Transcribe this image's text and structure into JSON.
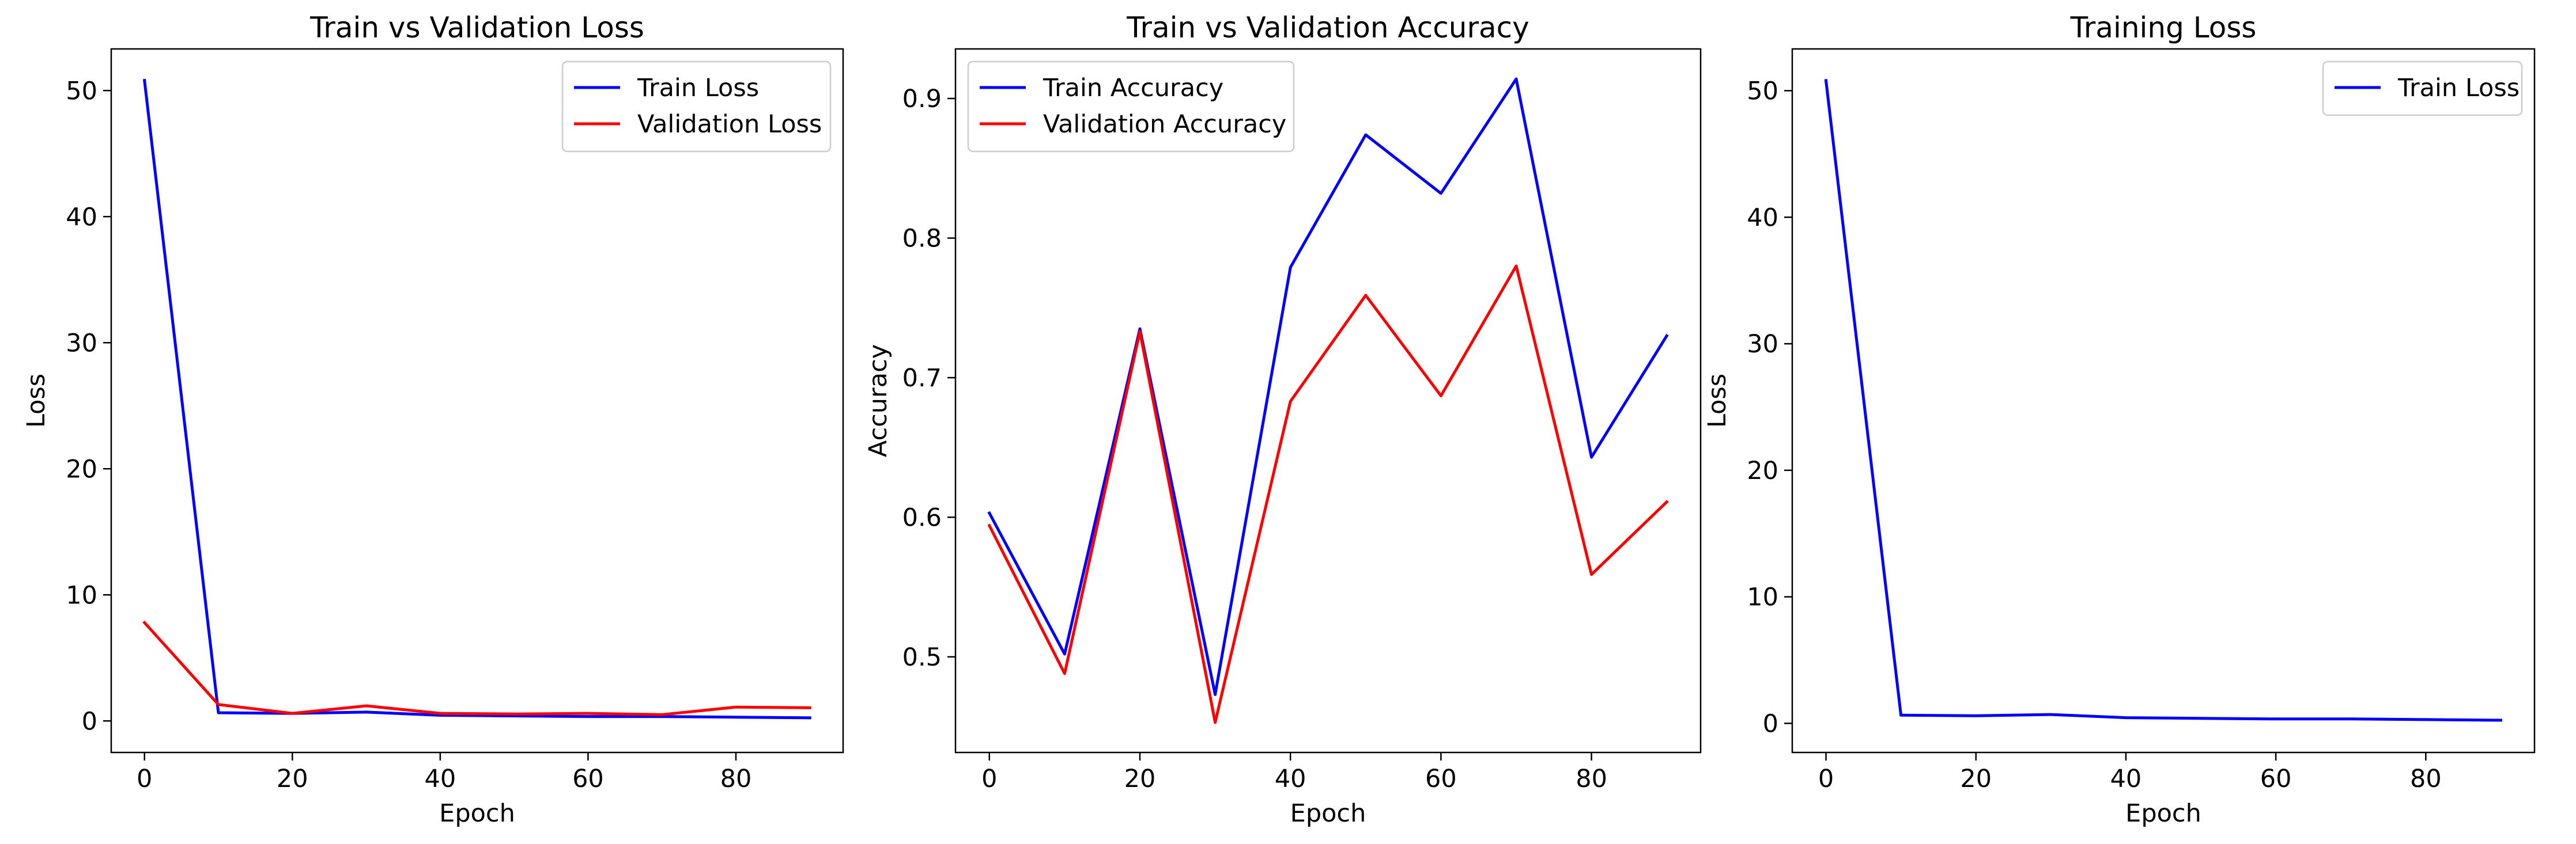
{
  "chart_data": [
    {
      "type": "line",
      "title": "Train vs Validation Loss",
      "xlabel": "Epoch",
      "ylabel": "Loss",
      "xlim": [
        -4.5,
        94.5
      ],
      "ylim": [
        -2.5,
        53.3
      ],
      "xticks": [
        0,
        20,
        40,
        60,
        80
      ],
      "yticks": [
        0,
        10,
        20,
        30,
        40,
        50
      ],
      "grid": false,
      "legend": "top-right",
      "x": [
        0,
        10,
        20,
        30,
        40,
        50,
        60,
        70,
        80,
        90
      ],
      "series": [
        {
          "name": "Train Loss",
          "color": "#0000ff",
          "values": [
            50.8,
            0.65,
            0.6,
            0.7,
            0.45,
            0.4,
            0.35,
            0.35,
            0.3,
            0.25
          ]
        },
        {
          "name": "Validation Loss",
          "color": "#ff0000",
          "values": [
            7.8,
            1.3,
            0.6,
            1.2,
            0.6,
            0.55,
            0.6,
            0.5,
            1.1,
            1.05
          ]
        }
      ]
    },
    {
      "type": "line",
      "title": "Train vs Validation Accuracy",
      "xlabel": "Epoch",
      "ylabel": "Accuracy",
      "xlim": [
        -4.5,
        94.5
      ],
      "ylim": [
        0.4315,
        0.9355
      ],
      "xticks": [
        0,
        20,
        40,
        60,
        80
      ],
      "yticks": [
        0.5,
        0.6,
        0.7,
        0.8,
        0.9
      ],
      "grid": false,
      "legend": "top-left",
      "x": [
        0,
        10,
        20,
        30,
        40,
        50,
        60,
        70,
        80,
        90
      ],
      "series": [
        {
          "name": "Train Accuracy",
          "color": "#0000ff",
          "values": [
            0.603,
            0.502,
            0.735,
            0.473,
            0.779,
            0.874,
            0.832,
            0.914,
            0.643,
            0.73
          ]
        },
        {
          "name": "Validation Accuracy",
          "color": "#ff0000",
          "values": [
            0.594,
            0.488,
            0.733,
            0.453,
            0.683,
            0.759,
            0.687,
            0.78,
            0.559,
            0.611
          ]
        }
      ]
    },
    {
      "type": "line",
      "title": "Training Loss",
      "xlabel": "Epoch",
      "ylabel": "Loss",
      "xlim": [
        -4.5,
        94.5
      ],
      "ylim": [
        -2.3,
        53.3
      ],
      "xticks": [
        0,
        20,
        40,
        60,
        80
      ],
      "yticks": [
        0,
        10,
        20,
        30,
        40,
        50
      ],
      "grid": false,
      "legend": "top-right",
      "x": [
        0,
        10,
        20,
        30,
        40,
        50,
        60,
        70,
        80,
        90
      ],
      "series": [
        {
          "name": "Train Loss",
          "color": "#0000ff",
          "values": [
            50.8,
            0.65,
            0.6,
            0.7,
            0.45,
            0.4,
            0.35,
            0.35,
            0.3,
            0.25
          ]
        }
      ]
    }
  ]
}
